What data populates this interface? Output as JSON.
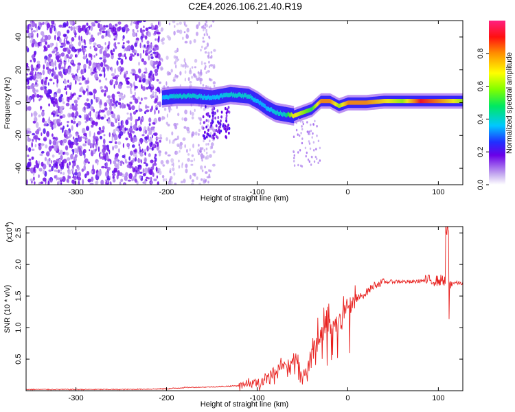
{
  "title": "C2E4.2026.106.21.40.R19",
  "chart_data": [
    {
      "type": "heatmap",
      "title": "C2E4.2026.106.21.40.R19",
      "xlabel": "Height of straight line (km)",
      "ylabel": "Frequency (Hz)",
      "xlim": [
        -355,
        127
      ],
      "ylim": [
        -50,
        50
      ],
      "xticks": [
        -300,
        -200,
        -100,
        0,
        100
      ],
      "yticks": [
        -40,
        -20,
        0,
        20,
        40
      ],
      "xtick_labels": [
        "-300",
        "-200",
        "-100",
        "0",
        "100"
      ],
      "ytick_labels": [
        "-40",
        "-20",
        "0",
        "20",
        "40"
      ],
      "ridge": {
        "x": [
          -205,
          -190,
          -170,
          -150,
          -130,
          -110,
          -100,
          -90,
          -80,
          -70,
          -60,
          -50,
          -40,
          -30,
          -20,
          -10,
          0,
          20,
          40,
          60,
          80,
          100,
          127
        ],
        "y": [
          3,
          4,
          4,
          3,
          5,
          4,
          1,
          -3,
          -6,
          -7,
          -8,
          -6,
          -4,
          1,
          1,
          -2,
          0,
          0,
          1,
          1,
          1,
          1,
          1
        ],
        "amplitude": [
          0.35,
          0.4,
          0.4,
          0.35,
          0.4,
          0.4,
          0.35,
          0.35,
          0.4,
          0.4,
          0.7,
          0.6,
          0.5,
          0.8,
          0.8,
          0.6,
          0.8,
          0.8,
          0.7,
          0.6,
          0.9,
          0.8,
          0.6
        ]
      },
      "colorbar": {
        "label": "Normalized spectral amplitude",
        "range": [
          0,
          1
        ],
        "ticks": [
          0.0,
          0.2,
          0.4,
          0.6,
          0.8
        ],
        "tick_labels": [
          "0.0",
          "0.2",
          "0.4",
          "0.6",
          "0.8"
        ]
      }
    },
    {
      "type": "line",
      "xlabel": "Height of straight line (km)",
      "ylabel": "SNR (10 * v/v)",
      "multiplier_label": "(x10",
      "multiplier_exp": "4",
      "multiplier_close": ")",
      "xlim": [
        -355,
        127
      ],
      "ylim": [
        0,
        2.6
      ],
      "xticks": [
        -300,
        -200,
        -100,
        0,
        100
      ],
      "yticks": [
        0.5,
        1.0,
        1.5,
        2.0,
        2.5
      ],
      "xtick_labels": [
        "-300",
        "-200",
        "-100",
        "0",
        "100"
      ],
      "ytick_labels": [
        "0.5",
        "1.0",
        "1.5",
        "2.0",
        "2.5"
      ],
      "series": [
        {
          "name": "SNR",
          "color": "#e8201e",
          "x": [
            -355,
            -300,
            -250,
            -200,
            -180,
            -150,
            -120,
            -100,
            -90,
            -80,
            -70,
            -60,
            -55,
            -50,
            -45,
            -40,
            -35,
            -30,
            -25,
            -20,
            -15,
            -10,
            -5,
            0,
            10,
            20,
            30,
            40,
            50,
            60,
            70,
            80,
            90,
            100,
            105,
            110,
            113,
            118,
            127
          ],
          "y": [
            0.02,
            0.02,
            0.02,
            0.03,
            0.05,
            0.06,
            0.08,
            0.12,
            0.22,
            0.28,
            0.4,
            0.5,
            0.45,
            0.2,
            0.3,
            0.6,
            0.8,
            0.9,
            1.0,
            1.05,
            1.1,
            1.15,
            1.25,
            1.35,
            1.45,
            1.55,
            1.68,
            1.72,
            1.73,
            1.73,
            1.72,
            1.74,
            1.75,
            1.74,
            1.76,
            1.72,
            1.7,
            1.71,
            1.7
          ]
        }
      ]
    }
  ]
}
